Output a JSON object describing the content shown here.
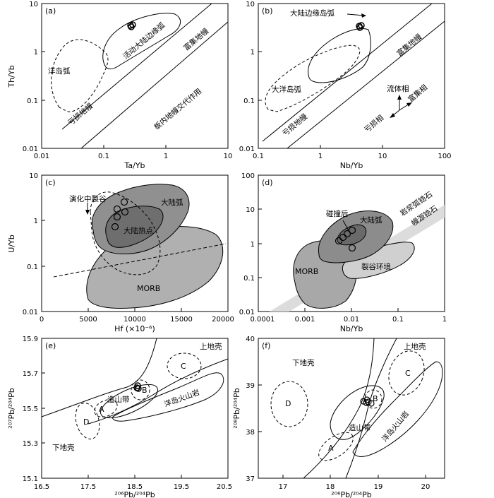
{
  "panels": {
    "a": {
      "label": "(a)",
      "xlabel": "Ta/Yb",
      "ylabel": "Th/Yb",
      "xticks": [
        "0.01",
        "0.1",
        "1",
        "10"
      ],
      "yticks": [
        "10",
        "1",
        "0.1",
        "0.01"
      ],
      "texts": [
        "洋岛弧",
        "活动大陆边缘弧",
        "富集地幔",
        "亏损地幔",
        "板内地幔交代作用"
      ]
    },
    "b": {
      "label": "(b)",
      "xlabel": "Nb/Yb",
      "ylabel": "",
      "xticks": [
        "0.1",
        "1",
        "10",
        "100"
      ],
      "yticks": [
        "10",
        "1",
        "0.1",
        "0.01"
      ],
      "texts": [
        "大陆边缘岛弧",
        "大洋岛弧",
        "富集地幔",
        "亏损地幔",
        "流体相",
        "富集相",
        "亏损相"
      ]
    },
    "c": {
      "label": "(c)",
      "xlabel": "Hf (×10⁻⁶)",
      "ylabel": "U/Yb",
      "xticks": [
        "0",
        "5000",
        "10000",
        "15000",
        "20000"
      ],
      "yticks": [
        "10",
        "1",
        "0.1",
        "0.01"
      ],
      "texts": [
        "演化中裂谷",
        "大陆弧",
        "大陆热点",
        "MORB"
      ]
    },
    "d": {
      "label": "(d)",
      "xlabel": "Nb/Yb",
      "ylabel": "",
      "xticks": [
        "0.0001",
        "0.001",
        "0.01",
        "0.1",
        "1"
      ],
      "yticks": [
        "100",
        "10",
        "1",
        "0.1",
        "0.01"
      ],
      "texts": [
        "碰撞后",
        "大陆弧",
        "MORB",
        "裂谷环境",
        "岩浆弧锆石",
        "幔源锆石"
      ]
    },
    "e": {
      "label": "(e)",
      "xlabel": "²⁰⁶Pb/²⁰⁴Pb",
      "ylabel": "²⁰⁷Pb/²⁰⁴Pb",
      "xticks": [
        "16.5",
        "17.5",
        "18.5",
        "19.5",
        "20.5"
      ],
      "yticks": [
        "15.9",
        "15.7",
        "15.5",
        "15.3",
        "15.1"
      ],
      "texts": [
        "上地壳",
        "C",
        "B",
        "A",
        "造山带",
        "洋岛火山岩",
        "D",
        "下地壳"
      ]
    },
    "f": {
      "label": "(f)",
      "xlabel": "²⁰⁶Pb/²⁰⁴Pb",
      "ylabel": "²⁰⁸Pb/²⁰⁴Pb",
      "xticks": [
        "17",
        "18",
        "19",
        "20"
      ],
      "yticks": [
        "40",
        "39",
        "38",
        "37"
      ],
      "texts": [
        "下地壳",
        "上地壳",
        "C",
        "D",
        "B",
        "造山带",
        "洋岛火山岩",
        "A"
      ]
    }
  }
}
